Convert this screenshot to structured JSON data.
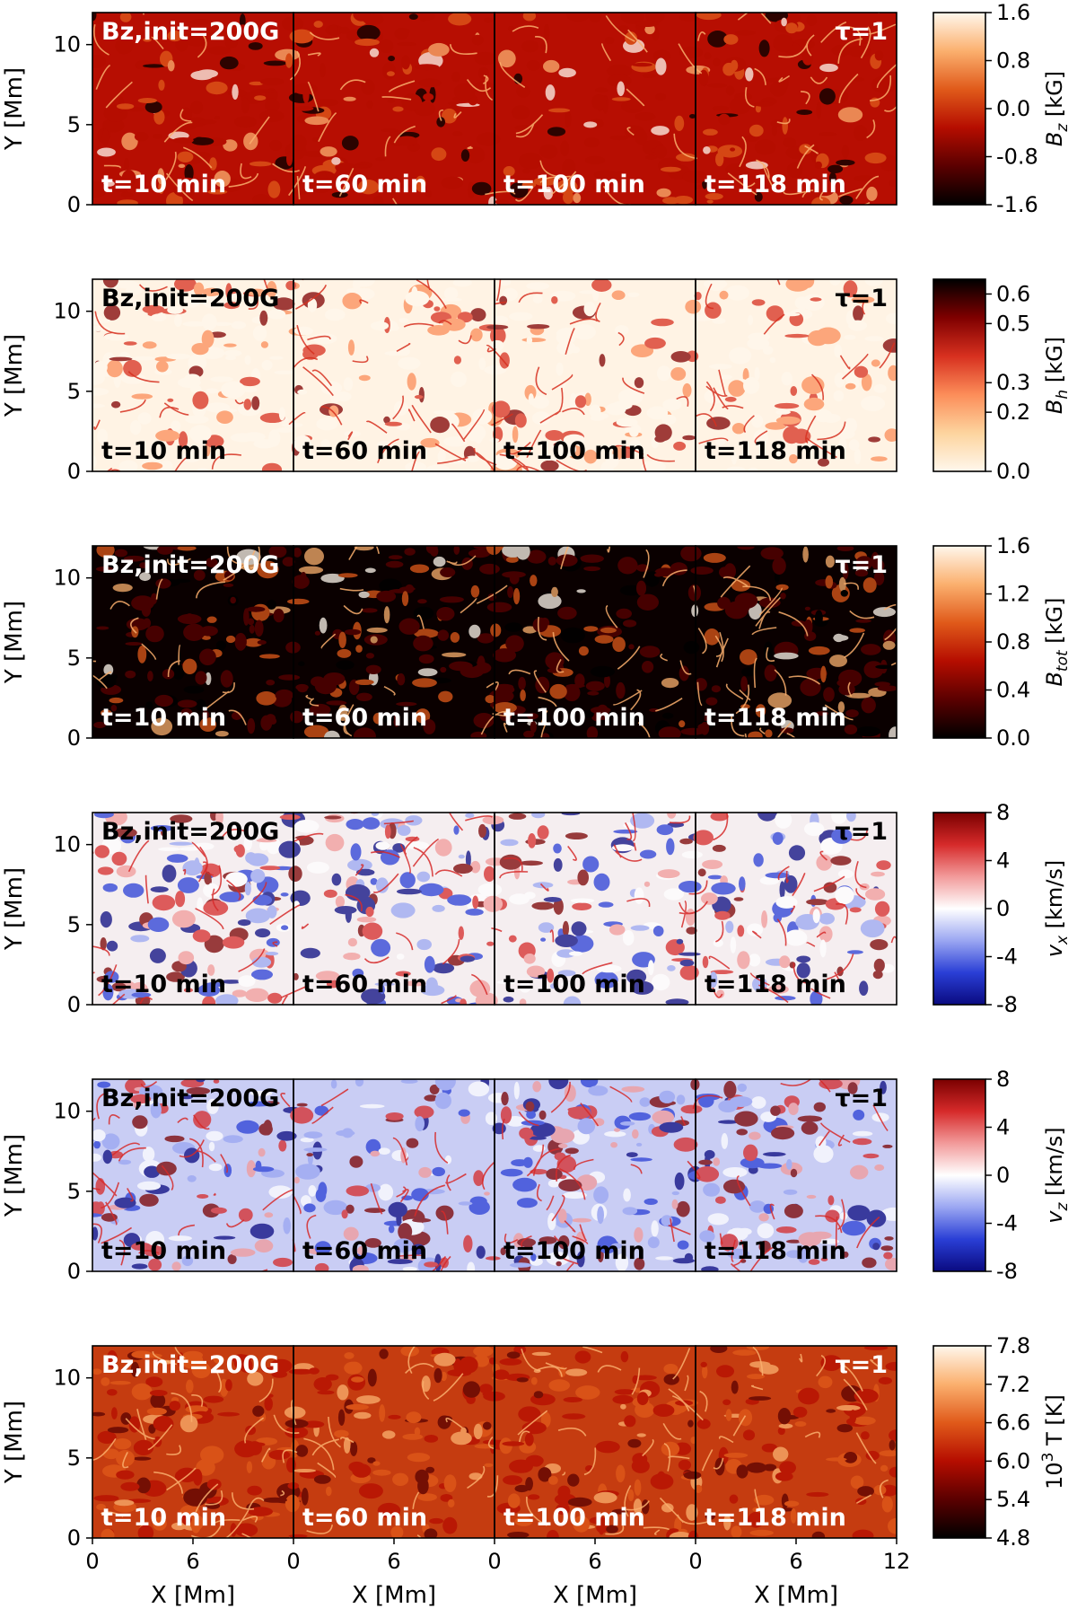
{
  "chart_data": {
    "type": "heatmap",
    "title": "",
    "xlabel": "X [Mm]",
    "ylabel": "Y [Mm]",
    "xlim": [
      0,
      12
    ],
    "ylim": [
      0,
      12
    ],
    "x_ticks": [
      "0",
      "6",
      "0",
      "6",
      "0",
      "6",
      "0",
      "6",
      "12"
    ],
    "y_ticks": [
      "0",
      "5",
      "10"
    ],
    "columns": [
      "t=10 min",
      "t=60 min",
      "t=100 min",
      "t=118 min"
    ],
    "setup_label": "Bz,init=200G",
    "surface_label": "τ=1",
    "rows": [
      {
        "quantity": "B_z",
        "colorbar_label": "Bz [kG]",
        "colorbar_label_main": "B",
        "colorbar_label_sub": "z",
        "colorbar_label_unit": " [kG]",
        "range": [
          -1.6,
          1.6
        ],
        "ticks": [
          "-1.6",
          "-0.8",
          "0.0",
          "0.8",
          "1.6"
        ],
        "colormap": [
          "#000000",
          "#5a0000",
          "#b50d00",
          "#e05a1a",
          "#fbb06e",
          "#fff7ec"
        ],
        "background": "#b70e02",
        "label_color": "#ffffff"
      },
      {
        "quantity": "B_h",
        "colorbar_label": "Bh [kG]",
        "colorbar_label_main": "B",
        "colorbar_label_sub": "h",
        "colorbar_label_unit": " [kG]",
        "range": [
          0.0,
          0.65
        ],
        "ticks": [
          "0.0",
          "0.2",
          "0.3",
          "0.5",
          "0.6"
        ],
        "colormap": [
          "#fff7ec",
          "#fdd49e",
          "#fc8d59",
          "#d7301f",
          "#7f0000",
          "#000000"
        ],
        "background": "#fff3e4",
        "label_color": "#000000"
      },
      {
        "quantity": "B_tot",
        "colorbar_label": "Btot [kG]",
        "colorbar_label_main": "B",
        "colorbar_label_sub": "tot",
        "colorbar_label_unit": " [kG]",
        "range": [
          0.0,
          1.6
        ],
        "ticks": [
          "0.0",
          "0.4",
          "0.8",
          "1.2",
          "1.6"
        ],
        "colormap": [
          "#000000",
          "#5a0000",
          "#b50d00",
          "#e05a1a",
          "#fbb06e",
          "#fff7ec"
        ],
        "background": "#0a0000",
        "label_color": "#ffffff"
      },
      {
        "quantity": "v_x",
        "colorbar_label": "vx [km/s]",
        "colorbar_label_main": "v",
        "colorbar_label_sub": "x",
        "colorbar_label_unit": " [km/s]",
        "range": [
          -8,
          8
        ],
        "ticks": [
          "-8",
          "-4",
          "0",
          "4",
          "8"
        ],
        "colormap": [
          "#0a0a80",
          "#2a3fd6",
          "#9aa6f2",
          "#ffffff",
          "#f29a9a",
          "#d62a2a",
          "#7a0000"
        ],
        "background": "#f5eef0",
        "label_color": "#000000"
      },
      {
        "quantity": "v_z",
        "colorbar_label": "vz [km/s]",
        "colorbar_label_main": "v",
        "colorbar_label_sub": "z",
        "colorbar_label_unit": " [km/s]",
        "range": [
          -8,
          8
        ],
        "ticks": [
          "-8",
          "-4",
          "0",
          "4",
          "8"
        ],
        "colormap": [
          "#0a0a80",
          "#2a3fd6",
          "#9aa6f2",
          "#ffffff",
          "#f29a9a",
          "#d62a2a",
          "#7a0000"
        ],
        "background": "#c9cdf4",
        "label_color": "#000000"
      },
      {
        "quantity": "T",
        "colorbar_label": "10^3 T [K]",
        "colorbar_label_main": "10",
        "colorbar_label_sup": "3",
        "colorbar_label_unit": " T [K]",
        "range": [
          4.8,
          7.8
        ],
        "ticks": [
          "4.8",
          "5.4",
          "6.0",
          "6.6",
          "7.2",
          "7.8"
        ],
        "colormap": [
          "#000000",
          "#5a0000",
          "#b50d00",
          "#e05a1a",
          "#fbb06e",
          "#fff7ec"
        ],
        "background": "#c53c10",
        "label_color": "#ffffff"
      }
    ]
  }
}
